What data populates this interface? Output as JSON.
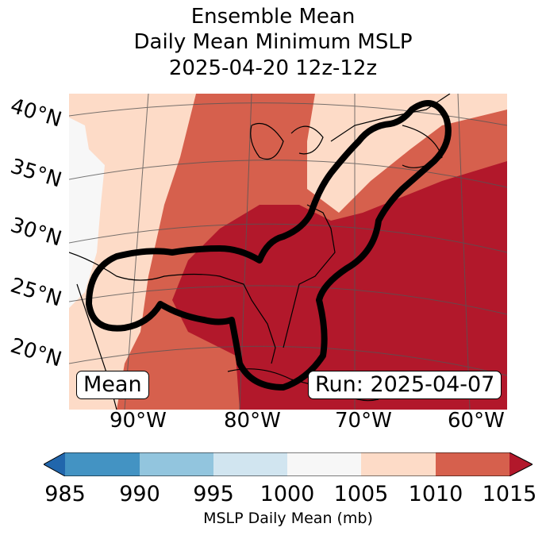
{
  "title": {
    "line1": "Ensemble Mean",
    "line2": "Daily Mean Minimum MSLP",
    "line3": "2025-04-20 12z-12z"
  },
  "lat_labels": [
    "40°N",
    "35°N",
    "30°N",
    "25°N",
    "20°N"
  ],
  "lon_labels": [
    "90°W",
    "80°W",
    "70°W",
    "60°W"
  ],
  "box_left": "Mean",
  "box_right": "Run: 2025-04-07",
  "colorbar": {
    "ticks": [
      "985",
      "990",
      "995",
      "1000",
      "1005",
      "1010",
      "1015"
    ],
    "label": "MSLP Daily Mean (mb)",
    "colors": [
      "#2166ac",
      "#4393c3",
      "#92c5de",
      "#d1e5f0",
      "#f7f7f7",
      "#fddbc7",
      "#d6604d",
      "#b2182b"
    ]
  }
}
